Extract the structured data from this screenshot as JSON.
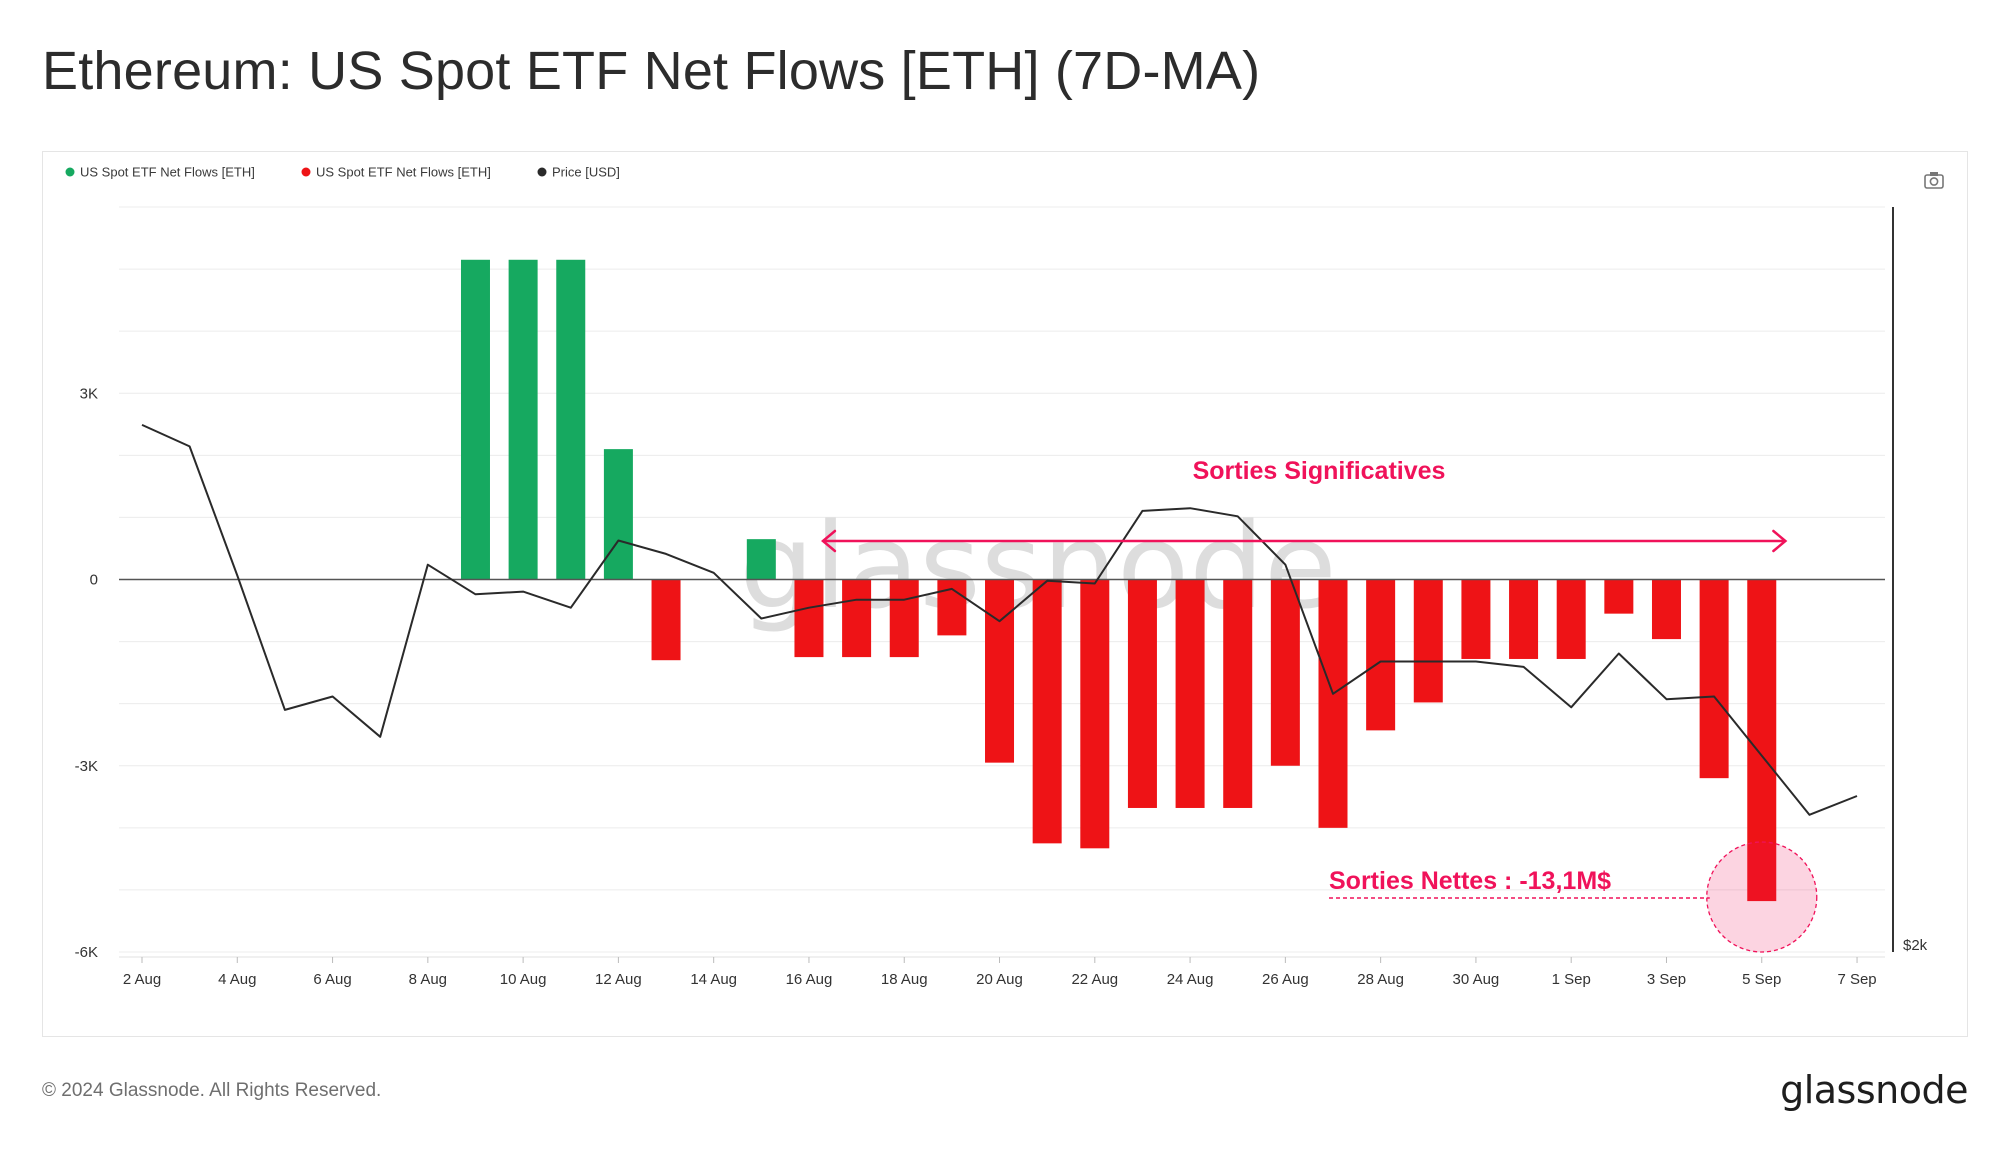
{
  "page": {
    "title": "Ethereum: US Spot ETF Net Flows [ETH] (7D-MA)",
    "copyright": "© 2024 Glassnode. All Rights Reserved.",
    "brand": "glassnode",
    "watermark": "glassnode"
  },
  "colors": {
    "inflow": "#16a960",
    "outflow": "#ee1316",
    "price": "#2a2a2a",
    "annotation": "#f0125a",
    "grid": "#ececec",
    "zero_line": "#555555"
  },
  "chart_data": {
    "type": "bar",
    "title": "Ethereum: US Spot ETF Net Flows [ETH] (7D-MA)",
    "xlabel": "",
    "ylabel": "",
    "ylim": [
      -6000,
      6000
    ],
    "y_ticks": [
      {
        "value": 3000,
        "label": "3K"
      },
      {
        "value": 0,
        "label": "0"
      },
      {
        "value": -3000,
        "label": "-3K"
      },
      {
        "value": -6000,
        "label": "-6K"
      }
    ],
    "right_axis_label": "$2k",
    "grid": true,
    "legend_position": "top-left",
    "legend": [
      {
        "label": "US Spot ETF Net Flows [ETH]",
        "color": "#16a960"
      },
      {
        "label": "US Spot ETF Net Flows [ETH]",
        "color": "#ee1316"
      },
      {
        "label": "Price [USD]",
        "color": "#2a2a2a"
      }
    ],
    "x_ticks": [
      "2 Aug",
      "4 Aug",
      "6 Aug",
      "8 Aug",
      "10 Aug",
      "12 Aug",
      "14 Aug",
      "16 Aug",
      "18 Aug",
      "20 Aug",
      "22 Aug",
      "24 Aug",
      "26 Aug",
      "28 Aug",
      "30 Aug",
      "1 Sep",
      "3 Sep",
      "5 Sep",
      "7 Sep"
    ],
    "categories": [
      "2 Aug",
      "3 Aug",
      "4 Aug",
      "5 Aug",
      "6 Aug",
      "7 Aug",
      "8 Aug",
      "9 Aug",
      "10 Aug",
      "11 Aug",
      "12 Aug",
      "13 Aug",
      "14 Aug",
      "15 Aug",
      "16 Aug",
      "17 Aug",
      "18 Aug",
      "19 Aug",
      "20 Aug",
      "21 Aug",
      "22 Aug",
      "23 Aug",
      "24 Aug",
      "25 Aug",
      "26 Aug",
      "27 Aug",
      "28 Aug",
      "29 Aug",
      "30 Aug",
      "31 Aug",
      "1 Sep",
      "2 Sep",
      "3 Sep",
      "4 Sep",
      "5 Sep",
      "6 Sep",
      "7 Sep"
    ],
    "series": [
      {
        "name": "US Spot ETF Net Flows [ETH]",
        "unit": "ETH",
        "values": [
          0,
          0,
          0,
          0,
          0,
          0,
          0,
          5150,
          5150,
          5150,
          2100,
          -1300,
          0,
          650,
          -1250,
          -1250,
          -1250,
          -900,
          -2950,
          -4250,
          -4330,
          -3680,
          -3680,
          -3680,
          -3000,
          -4000,
          -2430,
          -1980,
          -1280,
          -1280,
          -1280,
          -550,
          -960,
          -3200,
          -5180,
          0,
          0
        ]
      },
      {
        "name": "Price [USD]",
        "unit": "USD",
        "values": [
          2980,
          2940,
          2700,
          2450,
          2475,
          2400,
          2720,
          2665,
          2670,
          2640,
          2765,
          2740,
          2705,
          2620,
          2640,
          2655,
          2655,
          2675,
          2615,
          2690,
          2685,
          2820,
          2825,
          2810,
          2720,
          2480,
          2540,
          2540,
          2540,
          2530,
          2455,
          2555,
          2470,
          2475,
          2365,
          2255,
          2290
        ]
      }
    ],
    "annotations": [
      {
        "text": "Sorties Significatives",
        "from": "16 Aug",
        "to": "6 Sep"
      },
      {
        "text": "Sorties Nettes : -13,1M$",
        "target": "5 Sep"
      }
    ]
  }
}
